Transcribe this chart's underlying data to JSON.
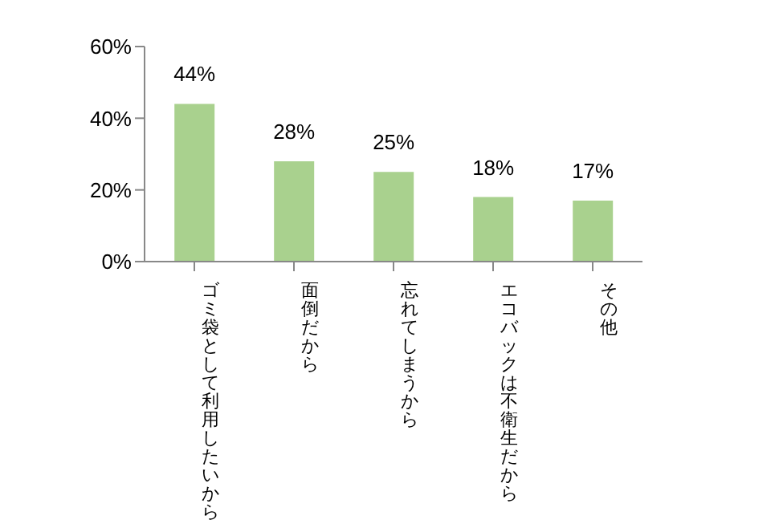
{
  "chart_data": {
    "type": "bar",
    "categories": [
      "ゴミ袋として利用したいから",
      "面倒だから",
      "忘れてしまうから",
      "エコバックは不衛生だから",
      "その他"
    ],
    "values": [
      44,
      28,
      25,
      18,
      17
    ],
    "value_labels": [
      "44%",
      "28%",
      "25%",
      "18%",
      "17%"
    ],
    "color": "#a9d18e",
    "ylim": [
      0,
      60
    ],
    "yticks": [
      {
        "value": 0,
        "label": "0%"
      },
      {
        "value": 20,
        "label": "20%"
      },
      {
        "value": 40,
        "label": "40%"
      },
      {
        "value": 60,
        "label": "60%"
      }
    ],
    "grid": false
  }
}
